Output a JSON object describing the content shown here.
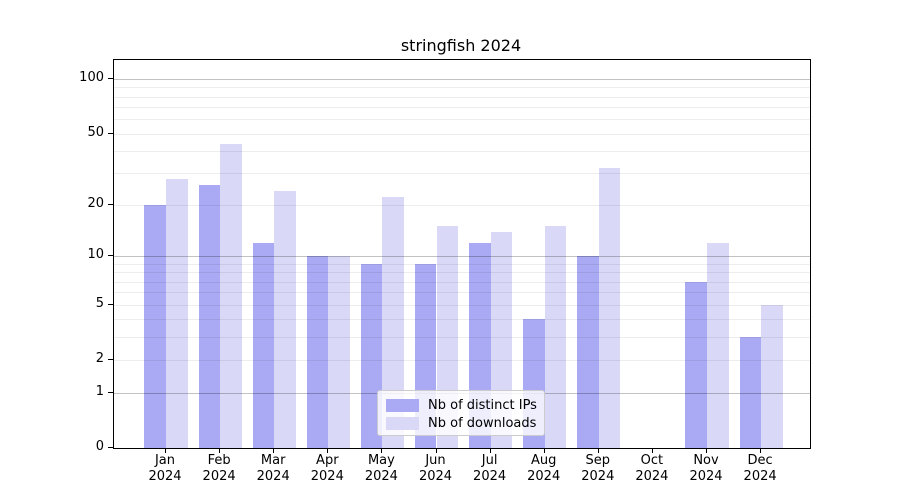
{
  "chart_data": {
    "type": "bar",
    "title": "stringfish 2024",
    "categories": [
      "Jan\n2024",
      "Feb\n2024",
      "Mar\n2024",
      "Apr\n2024",
      "May\n2024",
      "Jun\n2024",
      "Jul\n2024",
      "Aug\n2024",
      "Sep\n2024",
      "Oct\n2024",
      "Nov\n2024",
      "Dec\n2024"
    ],
    "series": [
      {
        "name": "Nb of distinct IPs",
        "color": "#a9a9f4",
        "values": [
          20,
          26,
          12,
          10,
          9,
          9,
          12,
          4,
          10,
          0,
          7,
          3
        ]
      },
      {
        "name": "Nb of downloads",
        "color": "#d9d9f7",
        "values": [
          28,
          44,
          24,
          10,
          22,
          15,
          14,
          15,
          32,
          0,
          12,
          5
        ]
      }
    ],
    "xlabel": "",
    "ylabel": "",
    "yscale": "log10(value+1)",
    "ylim": [
      0,
      125
    ],
    "yticks": [
      0,
      1,
      2,
      5,
      10,
      20,
      50,
      100
    ],
    "major_gridlines": [
      1,
      10,
      100
    ],
    "minor_gridlines": [
      2,
      3,
      4,
      5,
      6,
      7,
      8,
      9,
      20,
      30,
      40,
      50,
      60,
      70,
      80,
      90
    ],
    "grid": true,
    "legend_position": "lower center"
  },
  "colors": {
    "bar_dark": "#a9a9f4",
    "bar_light": "#d9d9f7",
    "axis": "#000000",
    "legend_border": "#cccccc"
  }
}
